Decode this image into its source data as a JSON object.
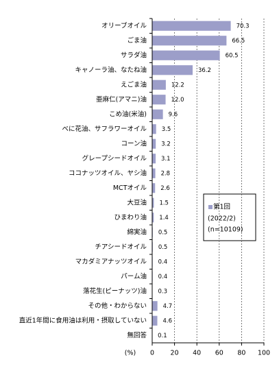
{
  "chart_data": {
    "type": "hbar",
    "categories": [
      "オリーブオイル",
      "ごま油",
      "サラダ油",
      "キャノーラ油、なたね油",
      "えごま油",
      "亜麻仁(アマニ)油",
      "こめ油(米油)",
      "べに花油、サフラワーオイル",
      "コーン油",
      "グレープシードオイル",
      "ココナッツオイル、ヤシ油",
      "MCTオイル",
      "大豆油",
      "ひまわり油",
      "綿実油",
      "チアシードオイル",
      "マカダミアナッツオイル",
      "パーム油",
      "落花生(ピーナッツ)油",
      "その他・わからない",
      "直近1年間に食用油は利用・摂取していない",
      "無回答"
    ],
    "series": [
      {
        "name": "第1回",
        "color": "#9c9ec9",
        "values": [
          70.3,
          66.5,
          60.5,
          36.2,
          12.2,
          12.0,
          9.6,
          3.5,
          3.2,
          3.1,
          2.8,
          2.6,
          1.5,
          1.4,
          0.5,
          0.5,
          0.4,
          0.4,
          0.3,
          4.7,
          4.6,
          0.1
        ],
        "value_labels": [
          "70.3",
          "66.5",
          "60.5",
          "36.2",
          "12.2",
          "12.0",
          "9.6",
          "3.5",
          "3.2",
          "3.1",
          "2.8",
          "2.6",
          "1.5",
          "1.4",
          "0.5",
          "0.5",
          "0.4",
          "0.4",
          "0.3",
          "4.7",
          "4.6",
          "0.1"
        ]
      }
    ],
    "legend_notes": [
      "(2022/2)",
      "(n=10109)"
    ],
    "xlabel": "(%)",
    "xlim": [
      0,
      100
    ],
    "xticks": [
      0,
      20,
      40,
      60,
      80,
      100
    ],
    "grid": true
  }
}
